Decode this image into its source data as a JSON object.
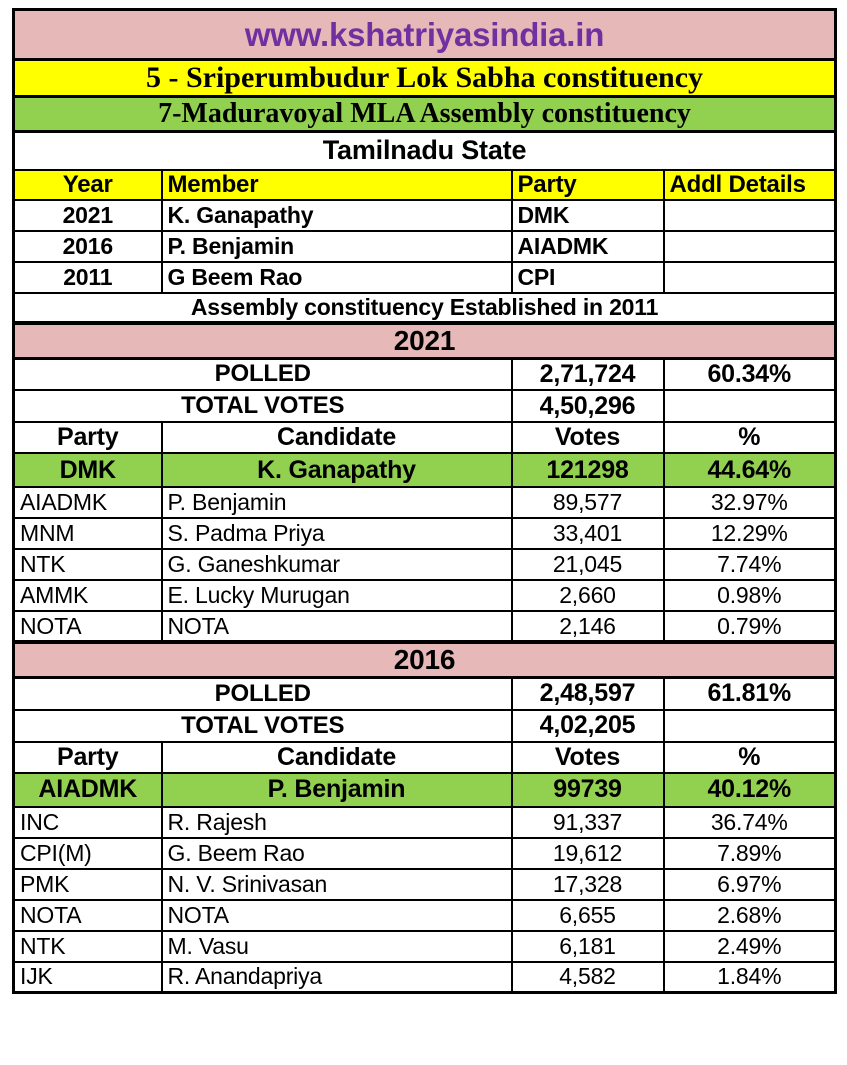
{
  "site_banner": "www.kshatriyasindia.in",
  "titles": {
    "lok_sabha": "5 - Sriperumbudur Lok Sabha constituency",
    "assembly": "7-Maduravoyal MLA Assembly constituency",
    "state": "Tamilnadu State"
  },
  "colors": {
    "banner_bg": "#E6B9B8",
    "banner_text": "#7030A0",
    "title_yellow": "#FFFF00",
    "title_green": "#92D050",
    "winner_green": "#92D050",
    "section_pink": "#E6B9B8",
    "border": "#000000"
  },
  "members": {
    "headers": [
      "Year",
      "Member",
      "Party",
      "Addl Details"
    ],
    "rows": [
      [
        "2021",
        "K. Ganapathy",
        "DMK",
        ""
      ],
      [
        "2016",
        "P. Benjamin",
        "AIADMK",
        ""
      ],
      [
        "2011",
        "G Beem Rao",
        "CPI",
        ""
      ]
    ]
  },
  "established_note": "Assembly constituency Established in 2011",
  "elections": [
    {
      "year": "2021",
      "polled_label": "POLLED",
      "polled_votes": "2,71,724",
      "polled_pct": "60.34%",
      "total_label": "TOTAL VOTES",
      "total_votes": "4,50,296",
      "headers": [
        "Party",
        "Candidate",
        "Votes",
        "%"
      ],
      "winner": {
        "party": "DMK",
        "candidate": "K. Ganapathy",
        "votes": "121298",
        "pct": "44.64%"
      },
      "rows": [
        [
          "AIADMK",
          "P. Benjamin",
          "89,577",
          "32.97%"
        ],
        [
          "MNM",
          "S. Padma Priya",
          "33,401",
          "12.29%"
        ],
        [
          "NTK",
          "G. Ganeshkumar",
          "21,045",
          "7.74%"
        ],
        [
          "AMMK",
          "E. Lucky Murugan",
          "2,660",
          "0.98%"
        ],
        [
          "NOTA",
          "NOTA",
          "2,146",
          "0.79%"
        ]
      ]
    },
    {
      "year": "2016",
      "polled_label": "POLLED",
      "polled_votes": "2,48,597",
      "polled_pct": "61.81%",
      "total_label": "TOTAL VOTES",
      "total_votes": "4,02,205",
      "headers": [
        "Party",
        "Candidate",
        "Votes",
        "%"
      ],
      "winner": {
        "party": "AIADMK",
        "candidate": "P. Benjamin",
        "votes": "99739",
        "pct": "40.12%"
      },
      "rows": [
        [
          "INC",
          "R. Rajesh",
          "91,337",
          "36.74%"
        ],
        [
          "CPI(M)",
          "G. Beem Rao",
          "19,612",
          "7.89%"
        ],
        [
          "PMK",
          "N. V. Srinivasan",
          "17,328",
          "6.97%"
        ],
        [
          "NOTA",
          "NOTA",
          "6,655",
          "2.68%"
        ],
        [
          "NTK",
          "M. Vasu",
          "6,181",
          "2.49%"
        ],
        [
          "IJK",
          "R. Anandapriya",
          "4,582",
          "1.84%"
        ]
      ]
    }
  ]
}
